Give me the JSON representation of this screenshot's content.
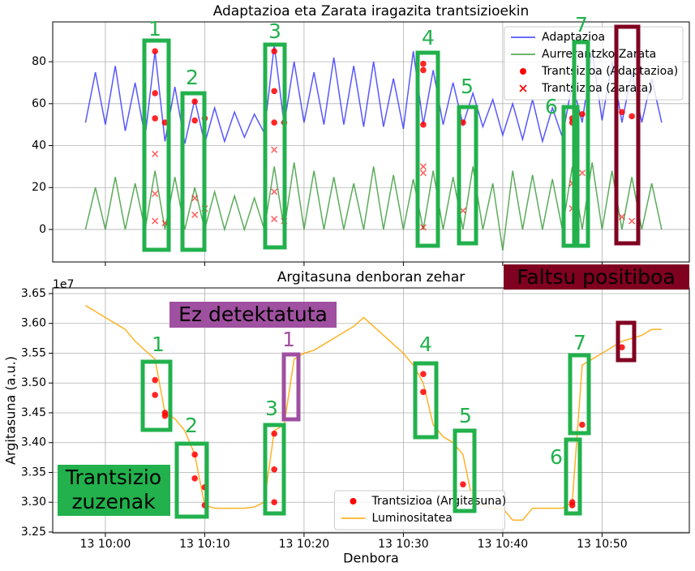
{
  "chart_data": [
    {
      "type": "line",
      "title": "Adaptazioa eta Zarata iragazita trantsizioekin",
      "x": [
        "09:58",
        "09:59",
        "10:00",
        "10:01",
        "10:02",
        "10:03",
        "10:04",
        "10:05",
        "10:06",
        "10:07",
        "10:08",
        "10:09",
        "10:10",
        "10:11",
        "10:12",
        "10:13",
        "10:14",
        "10:15",
        "10:16",
        "10:17",
        "10:18",
        "10:19",
        "10:20",
        "10:21",
        "10:22",
        "10:23",
        "10:24",
        "10:25",
        "10:26",
        "10:27",
        "10:28",
        "10:29",
        "10:30",
        "10:31",
        "10:32",
        "10:33",
        "10:34",
        "10:35",
        "10:36",
        "10:37",
        "10:38",
        "10:39",
        "10:40",
        "10:41",
        "10:42",
        "10:43",
        "10:44",
        "10:45",
        "10:46",
        "10:47",
        "10:48",
        "10:49",
        "10:50",
        "10:51",
        "10:52",
        "10:53",
        "10:54",
        "10:55",
        "10:56"
      ],
      "series": [
        {
          "name": "Adaptazioa",
          "color": "#3b3bff",
          "values": [
            51,
            75,
            50,
            78,
            47,
            70,
            44,
            85,
            42,
            68,
            41,
            62,
            41,
            58,
            42,
            56,
            44,
            55,
            46,
            88,
            50,
            80,
            51,
            75,
            50,
            82,
            50,
            78,
            49,
            80,
            49,
            72,
            48,
            85,
            50,
            76,
            50,
            70,
            50,
            65,
            49,
            62,
            45,
            60,
            43,
            62,
            42,
            58,
            44,
            70,
            51,
            85,
            52,
            80,
            51,
            75,
            51,
            72,
            51
          ]
        },
        {
          "name": "Aurrerantzko Zarata",
          "color": "#3e9e3e",
          "values": [
            0,
            20,
            0,
            25,
            0,
            22,
            0,
            28,
            0,
            25,
            0,
            20,
            0,
            18,
            0,
            16,
            0,
            15,
            0,
            30,
            0,
            32,
            0,
            28,
            0,
            25,
            0,
            22,
            0,
            30,
            0,
            26,
            0,
            24,
            0,
            28,
            0,
            25,
            0,
            30,
            0,
            22,
            -10,
            28,
            0,
            26,
            0,
            24,
            0,
            30,
            0,
            32,
            0,
            28,
            0,
            25,
            0,
            22,
            0
          ]
        },
        {
          "name": "Trantsizioa (Adaptazioa)",
          "color": "#ff0000",
          "marker": "o",
          "x": [
            "10:05",
            "10:05",
            "10:05",
            "10:06",
            "10:09",
            "10:09",
            "10:10",
            "10:17",
            "10:17",
            "10:17",
            "10:18",
            "10:32",
            "10:32",
            "10:32",
            "10:36",
            "10:47",
            "10:47",
            "10:48",
            "10:52",
            "10:53"
          ],
          "values": [
            85,
            65,
            53,
            51,
            61,
            52,
            53,
            85,
            66,
            51,
            51,
            79,
            76,
            50,
            51,
            51,
            53,
            55,
            56,
            54
          ]
        },
        {
          "name": "Trantsizioa (Zarata)",
          "color": "#ff0000",
          "marker": "x",
          "x": [
            "10:05",
            "10:05",
            "10:05",
            "10:06",
            "10:09",
            "10:09",
            "10:10",
            "10:17",
            "10:17",
            "10:17",
            "10:18",
            "10:32",
            "10:32",
            "10:32",
            "10:36",
            "10:47",
            "10:47",
            "10:48",
            "10:52",
            "10:53"
          ],
          "values": [
            36,
            17,
            4,
            3,
            15,
            7,
            10,
            38,
            18,
            5,
            4,
            30,
            27,
            1,
            9,
            10,
            22,
            27,
            6,
            4
          ]
        }
      ],
      "xlim": [
        "09:54:42",
        "10:58:47"
      ],
      "ylim": [
        -15.5,
        99
      ],
      "yticks": [
        0,
        20,
        40,
        60,
        80
      ],
      "grid": true,
      "legend": "upper right",
      "annotations": [
        "1",
        "2",
        "3",
        "4",
        "5",
        "6",
        "7"
      ],
      "callout": "Faltsu positiboa"
    },
    {
      "type": "line",
      "title": "Argitasuna denboran zehar",
      "x_label": "Denbora",
      "y_label": "Argitasuna (a.u.)",
      "y_offset": "1e7",
      "x": [
        "09:58",
        "09:59",
        "10:00",
        "10:01",
        "10:02",
        "10:03",
        "10:04",
        "10:05",
        "10:06",
        "10:07",
        "10:08",
        "10:09",
        "10:10",
        "10:11",
        "10:12",
        "10:13",
        "10:14",
        "10:15",
        "10:16",
        "10:17",
        "10:18",
        "10:19",
        "10:20",
        "10:21",
        "10:22",
        "10:23",
        "10:24",
        "10:25",
        "10:26",
        "10:27",
        "10:28",
        "10:29",
        "10:30",
        "10:31",
        "10:32",
        "10:33",
        "10:34",
        "10:35",
        "10:36",
        "10:37",
        "10:38",
        "10:39",
        "10:40",
        "10:41",
        "10:42",
        "10:43",
        "10:44",
        "10:45",
        "10:46",
        "10:47",
        "10:48",
        "10:49",
        "10:50",
        "10:51",
        "10:52",
        "10:53",
        "10:54",
        "10:55",
        "10:56"
      ],
      "series": [
        {
          "name": "Trantsizioa (Argitasuna)",
          "color": "#ff0000",
          "marker": "o",
          "x": [
            "10:05",
            "10:05",
            "10:06",
            "10:06",
            "10:09",
            "10:09",
            "10:10",
            "10:10",
            "10:17",
            "10:17",
            "10:17",
            "10:32",
            "10:32",
            "10:36",
            "10:47",
            "10:47",
            "10:48",
            "10:52"
          ],
          "values": [
            3.505,
            3.48,
            3.45,
            3.445,
            3.38,
            3.34,
            3.325,
            3.295,
            3.415,
            3.355,
            3.3,
            3.515,
            3.485,
            3.33,
            3.295,
            3.3,
            3.43,
            3.56
          ]
        },
        {
          "name": "Luminositatea",
          "color": "#ffa500",
          "values": [
            3.63,
            3.62,
            3.61,
            3.6,
            3.59,
            3.57,
            3.555,
            3.54,
            3.45,
            3.44,
            3.42,
            3.38,
            3.295,
            3.29,
            3.29,
            3.29,
            3.29,
            3.292,
            3.3,
            3.42,
            3.43,
            3.54,
            3.55,
            3.555,
            3.565,
            3.575,
            3.585,
            3.595,
            3.61,
            3.595,
            3.58,
            3.565,
            3.55,
            3.53,
            3.5,
            3.43,
            3.41,
            3.4,
            3.38,
            3.3,
            3.295,
            3.29,
            3.29,
            3.27,
            3.27,
            3.29,
            3.29,
            3.29,
            3.29,
            3.3,
            3.53,
            3.54,
            3.55,
            3.56,
            3.57,
            3.575,
            3.58,
            3.59,
            3.59
          ]
        }
      ],
      "xlim": [
        "09:54:42",
        "10:58:47"
      ],
      "xticks": [
        {
          "value": "10:00",
          "label": "13 10:00"
        },
        {
          "value": "10:10",
          "label": "13 10:10"
        },
        {
          "value": "10:20",
          "label": "13 10:20"
        },
        {
          "value": "10:30",
          "label": "13 10:30"
        },
        {
          "value": "10:40",
          "label": "13 10:40"
        },
        {
          "value": "10:50",
          "label": "13 10:50"
        }
      ],
      "ylim": [
        3.2486,
        3.6595
      ],
      "yticks": [
        3.25,
        {
          "value": 3.3,
          "label": "3.30"
        },
        3.35,
        {
          "value": 3.4,
          "label": "3.40"
        },
        3.45,
        {
          "value": 3.5,
          "label": "3.50"
        },
        3.55,
        {
          "value": 3.6,
          "label": "3.60"
        },
        3.65
      ],
      "grid": true,
      "legend": "lower center",
      "annotations": [
        "1",
        "2",
        "3",
        "4",
        "5",
        "6",
        "7"
      ],
      "missed": "1",
      "missed_note": "Ez detektatuta",
      "correct": [
        "Trantsizio",
        "zuzenak"
      ]
    }
  ]
}
